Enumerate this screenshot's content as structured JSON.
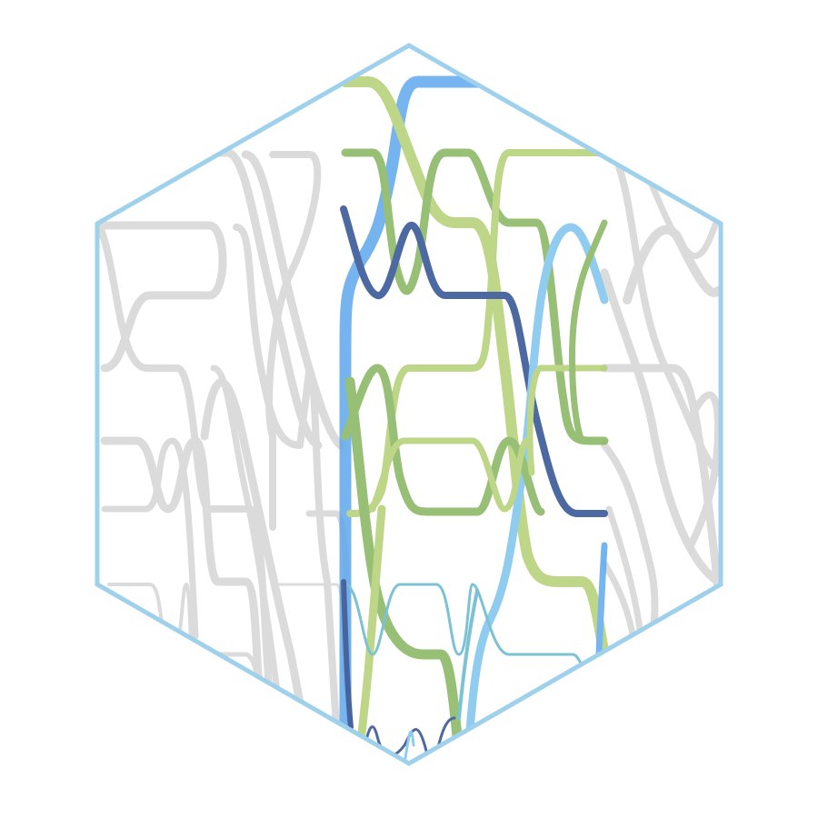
{
  "graphic": {
    "outline_color": "#9fd1ec",
    "background": "#ffffff",
    "palette": {
      "grey": "#bdbdbd",
      "blue": "#6aaef0",
      "sky": "#7fc6ec",
      "navy": "#3b5998",
      "green": "#8fbf6a",
      "lime": "#b9d37e",
      "teal": "#6fbfcf"
    }
  }
}
